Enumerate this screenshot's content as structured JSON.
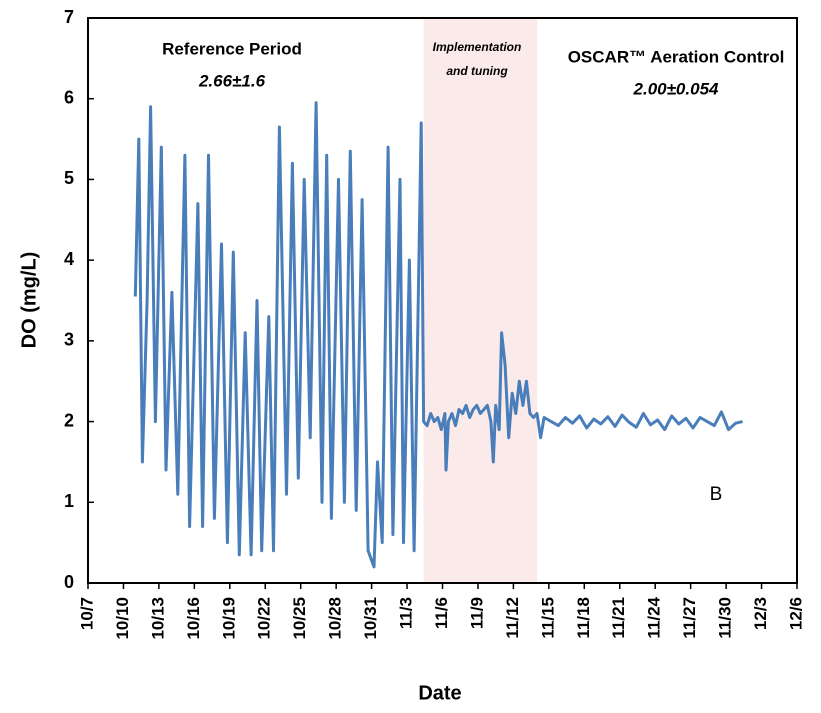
{
  "chart_data": {
    "type": "line",
    "xlabel": "Date",
    "ylabel": "DO  (mg/L)",
    "annotations": [
      "Reference Period",
      "2.66±1.6",
      "Implementation",
      "and tuning",
      "OSCAR™ Aeration Control",
      "2.00±0.054",
      "B"
    ],
    "highlight_span": [
      28.4,
      38.0
    ],
    "highlight_color": "#fbeaea",
    "color": "#4a7ebb",
    "x": [
      4.0,
      4.3,
      4.6,
      5.0,
      5.3,
      5.7,
      6.2,
      6.6,
      7.1,
      7.6,
      8.2,
      8.6,
      9.3,
      9.7,
      10.2,
      10.7,
      11.3,
      11.8,
      12.3,
      12.8,
      13.3,
      13.8,
      14.3,
      14.7,
      15.3,
      15.7,
      16.2,
      16.8,
      17.3,
      17.8,
      18.3,
      18.8,
      19.3,
      19.8,
      20.2,
      20.6,
      21.2,
      21.7,
      22.2,
      22.7,
      23.2,
      23.7,
      24.2,
      24.5,
      24.9,
      25.4,
      25.8,
      26.4,
      26.7,
      27.2,
      27.6,
      28.2,
      28.4,
      28.7,
      29.0,
      29.3,
      29.6,
      29.9,
      30.2,
      30.3,
      30.5,
      30.8,
      31.1,
      31.4,
      31.7,
      32.0,
      32.3,
      32.6,
      32.9,
      33.2,
      33.5,
      33.8,
      34.1,
      34.3,
      34.5,
      34.8,
      35.0,
      35.3,
      35.6,
      35.9,
      36.2,
      36.5,
      36.8,
      37.1,
      37.4,
      37.7,
      38.0,
      38.3,
      38.6,
      39.2,
      39.8,
      40.4,
      41.0,
      41.6,
      42.2,
      42.8,
      43.4,
      44.0,
      44.6,
      45.2,
      45.8,
      46.4,
      47.0,
      47.6,
      48.2,
      48.8,
      49.4,
      50.0,
      50.6,
      51.2,
      51.8,
      52.4,
      53.0,
      53.6,
      54.2,
      54.8,
      55.4
    ],
    "values": [
      3.55,
      5.5,
      1.5,
      3.5,
      5.9,
      2.0,
      5.4,
      1.4,
      3.6,
      1.1,
      5.3,
      0.7,
      4.7,
      0.7,
      5.3,
      0.8,
      4.2,
      0.5,
      4.1,
      0.35,
      3.1,
      0.35,
      3.5,
      0.4,
      3.3,
      0.4,
      5.65,
      1.1,
      5.2,
      1.3,
      5.0,
      1.8,
      5.95,
      1.0,
      5.3,
      0.8,
      5.0,
      1.0,
      5.35,
      0.9,
      4.75,
      0.4,
      0.2,
      1.5,
      0.5,
      5.4,
      0.6,
      5.0,
      0.5,
      4.0,
      0.4,
      5.7,
      2.0,
      1.95,
      2.1,
      2.0,
      2.05,
      1.9,
      2.1,
      1.4,
      2.0,
      2.1,
      1.95,
      2.15,
      2.1,
      2.2,
      2.05,
      2.15,
      2.2,
      2.1,
      2.15,
      2.2,
      2.0,
      1.5,
      2.2,
      1.9,
      3.1,
      2.7,
      1.8,
      2.35,
      2.1,
      2.5,
      2.2,
      2.5,
      2.1,
      2.05,
      2.1,
      1.8,
      2.05,
      2.0,
      1.95,
      2.05,
      1.98,
      2.07,
      1.92,
      2.03,
      1.97,
      2.06,
      1.94,
      2.08,
      1.99,
      1.93,
      2.1,
      1.96,
      2.02,
      1.9,
      2.07,
      1.97,
      2.04,
      1.92,
      2.05,
      2.0,
      1.95,
      2.12,
      1.9,
      1.98,
      2.0
    ],
    "xlim": [
      0,
      60
    ],
    "xticks": [
      {
        "value": 0,
        "label": "10/7"
      },
      {
        "value": 3,
        "label": "10/10"
      },
      {
        "value": 6,
        "label": "10/13"
      },
      {
        "value": 9,
        "label": "10/16"
      },
      {
        "value": 12,
        "label": "10/19"
      },
      {
        "value": 15,
        "label": "10/22"
      },
      {
        "value": 18,
        "label": "10/25"
      },
      {
        "value": 21,
        "label": "10/28"
      },
      {
        "value": 24,
        "label": "10/31"
      },
      {
        "value": 27,
        "label": "11/3"
      },
      {
        "value": 30,
        "label": "11/6"
      },
      {
        "value": 33,
        "label": "11/9"
      },
      {
        "value": 36,
        "label": "11/12"
      },
      {
        "value": 39,
        "label": "11/15"
      },
      {
        "value": 42,
        "label": "11/18"
      },
      {
        "value": 45,
        "label": "11/21"
      },
      {
        "value": 48,
        "label": "11/24"
      },
      {
        "value": 51,
        "label": "11/27"
      },
      {
        "value": 54,
        "label": "11/30"
      },
      {
        "value": 57,
        "label": "12/3"
      },
      {
        "value": 60,
        "label": "12/6"
      }
    ],
    "ylim": [
      0,
      7
    ],
    "yticks": [
      0,
      1,
      2,
      3,
      4,
      5,
      6,
      7
    ],
    "grid": false
  }
}
